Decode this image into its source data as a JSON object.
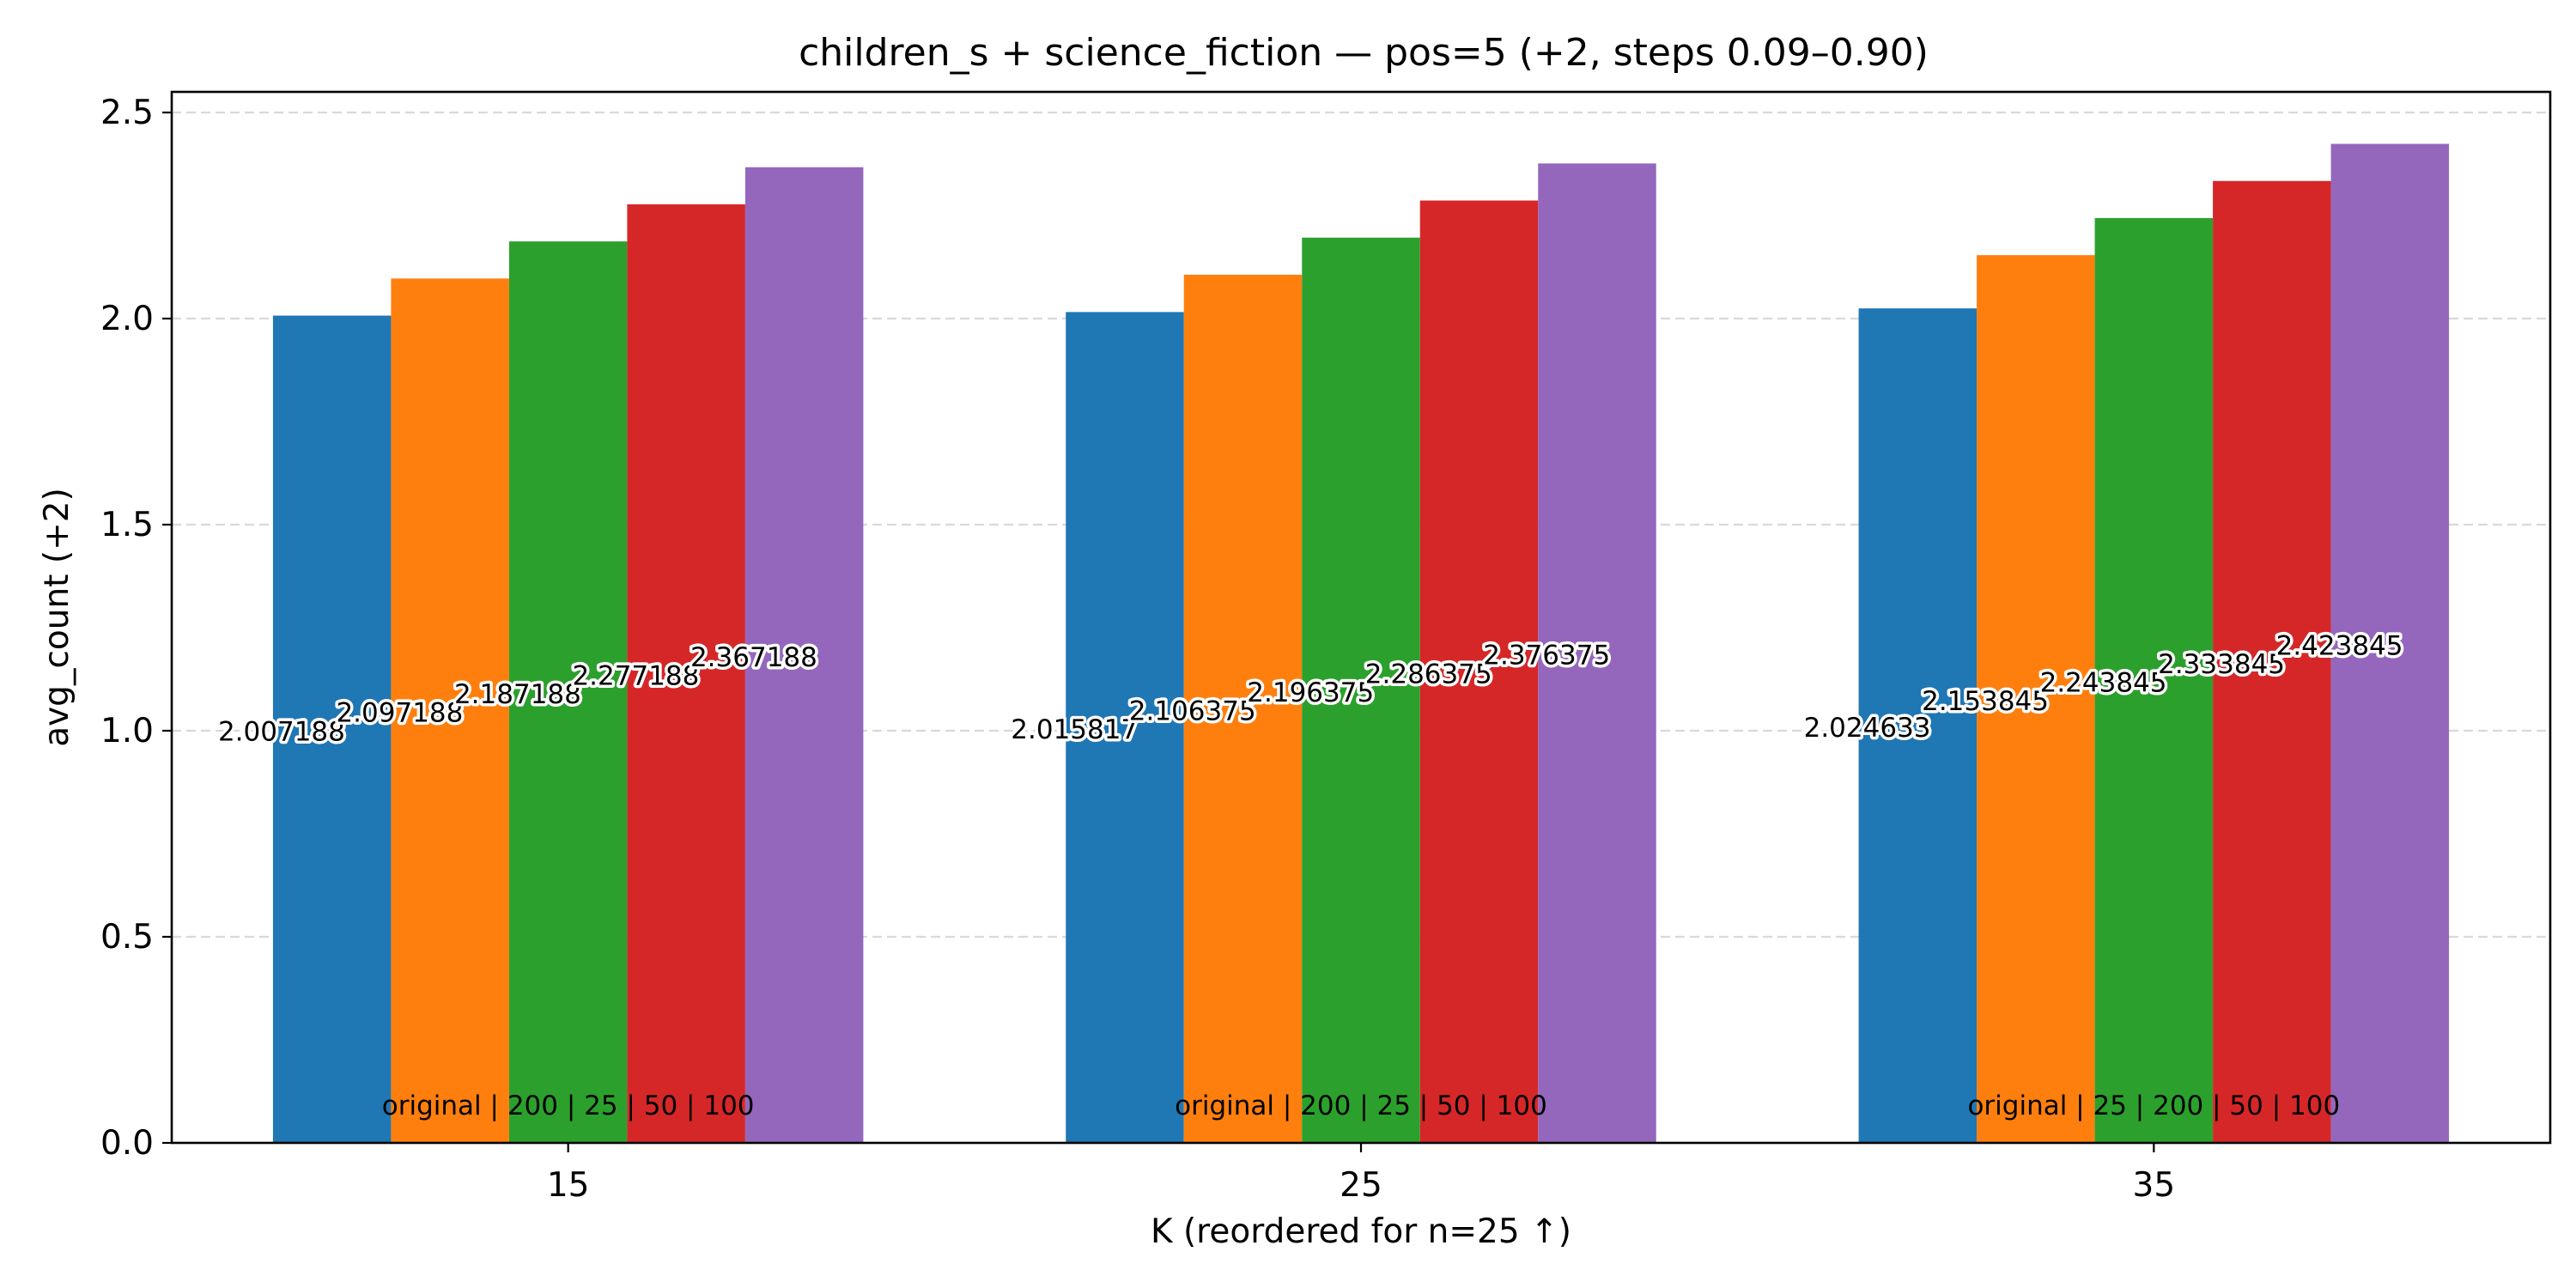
{
  "chart_data": {
    "type": "bar",
    "title": "children_s + science_fiction — pos=5 (+2, steps 0.09–0.90)",
    "xlabel": "K (reordered for n=25 ↑)",
    "ylabel": "avg_count (+2)",
    "ylim": [
      0,
      2.55
    ],
    "yticks": [
      "0.0",
      "0.5",
      "1.0",
      "1.5",
      "2.0",
      "2.5"
    ],
    "grid": "horizontal-dashed",
    "categories": [
      "15",
      "25",
      "35"
    ],
    "colors": [
      "#1f77b4",
      "#ff7f0e",
      "#2ca02c",
      "#d62728",
      "#9467bd"
    ],
    "groups": [
      {
        "category": "15",
        "values": [
          2.007188,
          2.097188,
          2.187188,
          2.277188,
          2.367188
        ],
        "labels": [
          "2.007188",
          "2.097188",
          "2.187188",
          "2.277188",
          "2.367188"
        ],
        "order_label": "original | 200 | 25 | 50 | 100"
      },
      {
        "category": "25",
        "values": [
          2.015817,
          2.106375,
          2.196375,
          2.286375,
          2.376375
        ],
        "labels": [
          "2.015817",
          "2.106375",
          "2.196375",
          "2.286375",
          "2.376375"
        ],
        "order_label": "original | 200 | 25 | 50 | 100"
      },
      {
        "category": "35",
        "values": [
          2.024633,
          2.153845,
          2.243845,
          2.333845,
          2.423845
        ],
        "labels": [
          "2.024633",
          "2.153845",
          "2.243845",
          "2.333845",
          "2.423845"
        ],
        "order_label": "original | 25 | 200 | 50 | 100"
      }
    ]
  }
}
